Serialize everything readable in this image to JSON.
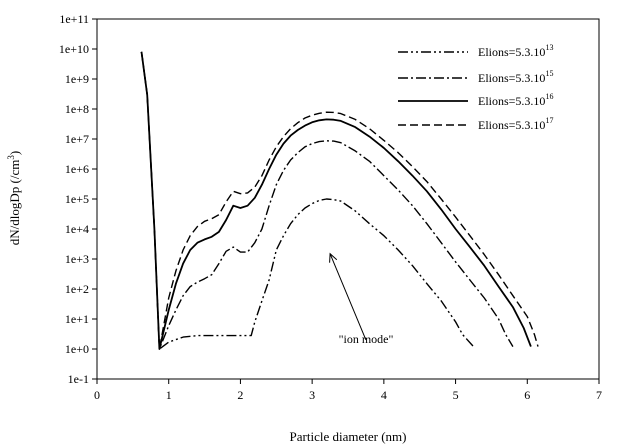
{
  "chart_data": {
    "type": "line",
    "title": "",
    "xlabel": "Particle diameter (nm)",
    "ylabel": "dN/dlogDp (/cm3)",
    "ylabel_base": "dN/dlogDp (/cm",
    "ylabel_sup": "3",
    "ylabel_close": ")",
    "xlim": [
      0,
      7
    ],
    "ylim": [
      0.1,
      100000000000
    ],
    "y_scale": "log",
    "grid": false,
    "legend_position": "top-right",
    "x_ticks": [
      0,
      1,
      2,
      3,
      4,
      5,
      6,
      7
    ],
    "x_tick_labels": [
      "0",
      "1",
      "2",
      "3",
      "4",
      "5",
      "6",
      "7"
    ],
    "y_ticks": [
      0.1,
      1,
      10,
      100,
      1000,
      10000,
      100000,
      1000000,
      10000000,
      100000000,
      1000000000,
      10000000000,
      100000000000
    ],
    "y_tick_labels": [
      "1e-1",
      "1e+0",
      "1e+1",
      "1e+2",
      "1e+3",
      "1e+4",
      "1e+5",
      "1e+6",
      "1e+7",
      "1e+8",
      "1e+9",
      "1e+10",
      "1e+11"
    ],
    "series": [
      {
        "name": "Elions=5.3.10^13",
        "label_base": "Elions=5.3.10",
        "label_exp": "13",
        "dash": "dash-dot-dot",
        "points": [
          [
            0.62,
            8000000000
          ],
          [
            0.7,
            300000000
          ],
          [
            0.8,
            10000
          ],
          [
            0.87,
            1
          ],
          [
            1.0,
            1.7
          ],
          [
            1.2,
            2.5
          ],
          [
            1.4,
            2.8
          ],
          [
            1.7,
            2.8
          ],
          [
            2.0,
            2.8
          ],
          [
            2.15,
            2.8
          ],
          [
            2.2,
            8
          ],
          [
            2.3,
            40
          ],
          [
            2.4,
            200
          ],
          [
            2.5,
            2000
          ],
          [
            2.6,
            6000
          ],
          [
            2.7,
            15000
          ],
          [
            2.8,
            30000
          ],
          [
            2.9,
            50000
          ],
          [
            3.0,
            70000
          ],
          [
            3.1,
            90000
          ],
          [
            3.2,
            100000
          ],
          [
            3.3,
            95000
          ],
          [
            3.4,
            85000
          ],
          [
            3.6,
            40000
          ],
          [
            3.8,
            15000
          ],
          [
            4.0,
            6000
          ],
          [
            4.2,
            2000
          ],
          [
            4.4,
            600
          ],
          [
            4.6,
            150
          ],
          [
            4.8,
            40
          ],
          [
            5.0,
            8
          ],
          [
            5.1,
            3
          ],
          [
            5.25,
            1.2
          ]
        ]
      },
      {
        "name": "Elions=5.3.10^15",
        "label_base": "Elions=5.3.10",
        "label_exp": "15",
        "dash": "dash-dot",
        "points": [
          [
            0.62,
            8000000000
          ],
          [
            0.7,
            300000000
          ],
          [
            0.8,
            10000
          ],
          [
            0.87,
            1
          ],
          [
            1.0,
            6
          ],
          [
            1.1,
            20
          ],
          [
            1.2,
            60
          ],
          [
            1.3,
            120
          ],
          [
            1.4,
            170
          ],
          [
            1.5,
            220
          ],
          [
            1.6,
            300
          ],
          [
            1.7,
            700
          ],
          [
            1.8,
            1800
          ],
          [
            1.9,
            2500
          ],
          [
            2.0,
            1700
          ],
          [
            2.1,
            1700
          ],
          [
            2.2,
            3500
          ],
          [
            2.3,
            10000
          ],
          [
            2.4,
            60000
          ],
          [
            2.5,
            300000
          ],
          [
            2.6,
            900000
          ],
          [
            2.7,
            2000000
          ],
          [
            2.8,
            3500000
          ],
          [
            2.9,
            5500000
          ],
          [
            3.0,
            7000000
          ],
          [
            3.1,
            8200000
          ],
          [
            3.2,
            8700000
          ],
          [
            3.3,
            8500000
          ],
          [
            3.4,
            7500000
          ],
          [
            3.6,
            4000000
          ],
          [
            3.8,
            1800000
          ],
          [
            4.0,
            600000
          ],
          [
            4.2,
            200000
          ],
          [
            4.4,
            60000
          ],
          [
            4.6,
            15000
          ],
          [
            4.8,
            3500
          ],
          [
            5.0,
            800
          ],
          [
            5.2,
            200
          ],
          [
            5.4,
            50
          ],
          [
            5.6,
            10
          ],
          [
            5.7,
            3
          ],
          [
            5.8,
            1.2
          ]
        ]
      },
      {
        "name": "Elions=5.3.10^16",
        "label_base": "Elions=5.3.10",
        "label_exp": "16",
        "dash": "solid",
        "points": [
          [
            0.62,
            8000000000
          ],
          [
            0.7,
            300000000
          ],
          [
            0.8,
            10000
          ],
          [
            0.87,
            1
          ],
          [
            1.0,
            20
          ],
          [
            1.1,
            150
          ],
          [
            1.2,
            700
          ],
          [
            1.3,
            2000
          ],
          [
            1.4,
            3500
          ],
          [
            1.5,
            4500
          ],
          [
            1.6,
            5500
          ],
          [
            1.7,
            8000
          ],
          [
            1.8,
            20000
          ],
          [
            1.9,
            60000
          ],
          [
            2.0,
            50000
          ],
          [
            2.1,
            60000
          ],
          [
            2.2,
            110000
          ],
          [
            2.3,
            300000
          ],
          [
            2.4,
            1000000
          ],
          [
            2.5,
            3000000
          ],
          [
            2.6,
            7000000
          ],
          [
            2.7,
            13000000
          ],
          [
            2.8,
            20000000
          ],
          [
            2.9,
            28000000
          ],
          [
            3.0,
            36000000
          ],
          [
            3.1,
            42000000
          ],
          [
            3.2,
            45000000
          ],
          [
            3.3,
            44000000
          ],
          [
            3.4,
            40000000
          ],
          [
            3.6,
            25000000
          ],
          [
            3.8,
            12000000
          ],
          [
            4.0,
            5000000
          ],
          [
            4.2,
            1800000
          ],
          [
            4.4,
            600000
          ],
          [
            4.6,
            180000
          ],
          [
            4.8,
            45000
          ],
          [
            5.0,
            10000
          ],
          [
            5.2,
            2500
          ],
          [
            5.4,
            600
          ],
          [
            5.6,
            120
          ],
          [
            5.8,
            25
          ],
          [
            5.95,
            5
          ],
          [
            6.05,
            1.2
          ]
        ]
      },
      {
        "name": "Elions=5.3.10^17",
        "label_base": "Elions=5.3.10",
        "label_exp": "17",
        "dash": "dash",
        "points": [
          [
            0.62,
            8000000000
          ],
          [
            0.7,
            300000000
          ],
          [
            0.8,
            10000
          ],
          [
            0.87,
            1
          ],
          [
            1.0,
            50
          ],
          [
            1.1,
            400
          ],
          [
            1.2,
            2000
          ],
          [
            1.3,
            6000
          ],
          [
            1.4,
            12000
          ],
          [
            1.5,
            18000
          ],
          [
            1.6,
            22000
          ],
          [
            1.7,
            30000
          ],
          [
            1.8,
            80000
          ],
          [
            1.9,
            180000
          ],
          [
            2.0,
            150000
          ],
          [
            2.1,
            160000
          ],
          [
            2.2,
            250000
          ],
          [
            2.3,
            600000
          ],
          [
            2.4,
            2000000
          ],
          [
            2.5,
            5500000
          ],
          [
            2.6,
            12000000
          ],
          [
            2.7,
            22000000
          ],
          [
            2.8,
            35000000
          ],
          [
            2.9,
            50000000
          ],
          [
            3.0,
            62000000
          ],
          [
            3.1,
            72000000
          ],
          [
            3.2,
            78000000
          ],
          [
            3.3,
            77000000
          ],
          [
            3.4,
            70000000
          ],
          [
            3.6,
            45000000
          ],
          [
            3.8,
            22000000
          ],
          [
            4.0,
            9000000
          ],
          [
            4.2,
            3500000
          ],
          [
            4.4,
            1200000
          ],
          [
            4.6,
            380000
          ],
          [
            4.8,
            100000
          ],
          [
            5.0,
            25000
          ],
          [
            5.2,
            6000
          ],
          [
            5.4,
            1400
          ],
          [
            5.6,
            300
          ],
          [
            5.8,
            60
          ],
          [
            6.0,
            12
          ],
          [
            6.1,
            3
          ],
          [
            6.15,
            1.2
          ]
        ]
      }
    ],
    "annotations": [
      {
        "text": "\"ion mode\"",
        "arrow_tail": [
          3.75,
          2
        ],
        "arrow_head": [
          3.25,
          1500
        ]
      }
    ]
  }
}
